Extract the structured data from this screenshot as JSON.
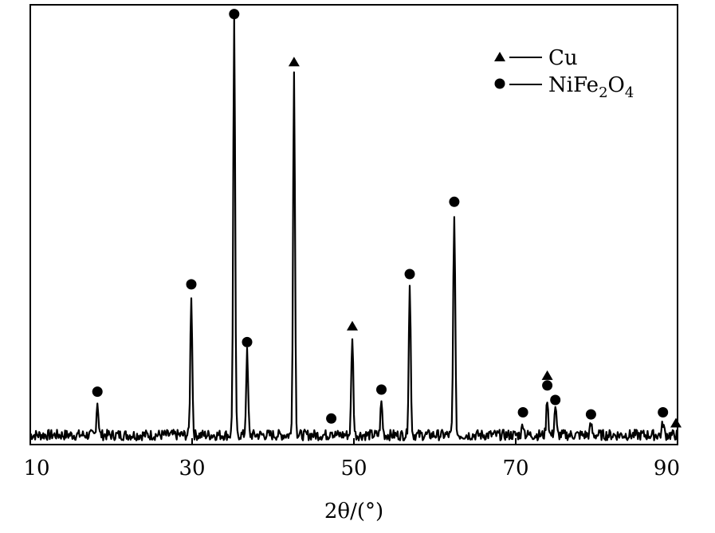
{
  "chart_data": {
    "type": "line",
    "title": "",
    "xlabel": "2θ/(°)",
    "ylabel": "",
    "xlim": [
      10,
      90
    ],
    "ylim": [
      0,
      100
    ],
    "x_ticks": [
      "10",
      "30",
      "50",
      "70",
      "90"
    ],
    "grid": false,
    "legend_position": "top-right",
    "legend": [
      {
        "marker": "triangle",
        "label": "Cu",
        "label_main": "Cu",
        "label_parts": []
      },
      {
        "marker": "circle",
        "label": "NiFe2O4",
        "label_parts": [
          {
            "text": "NiFe",
            "sub": false
          },
          {
            "text": "2",
            "sub": true
          },
          {
            "text": "O",
            "sub": false
          },
          {
            "text": "4",
            "sub": true
          }
        ]
      }
    ],
    "series": [
      {
        "peaks": [
          {
            "x": 18.3,
            "y": 8,
            "phase": "NiFe2O4"
          },
          {
            "x": 29.9,
            "y": 34,
            "phase": "NiFe2O4"
          },
          {
            "x": 35.2,
            "y": 100,
            "phase": "NiFe2O4"
          },
          {
            "x": 36.8,
            "y": 20,
            "phase": "NiFe2O4"
          },
          {
            "x": 42.6,
            "y": 88,
            "phase": "Cu"
          },
          {
            "x": 47.2,
            "y": 1.5,
            "phase": "NiFe2O4"
          },
          {
            "x": 49.8,
            "y": 24,
            "phase": "Cu"
          },
          {
            "x": 53.4,
            "y": 8,
            "phase": "NiFe2O4"
          },
          {
            "x": 56.9,
            "y": 36,
            "phase": "NiFe2O4"
          },
          {
            "x": 62.4,
            "y": 54,
            "phase": "NiFe2O4"
          },
          {
            "x": 70.9,
            "y": 3,
            "phase": "NiFe2O4"
          },
          {
            "x": 73.9,
            "y": 9,
            "phase": "Cu"
          },
          {
            "x": 74.9,
            "y": 7,
            "phase": "NiFe2O4"
          },
          {
            "x": 79.3,
            "y": 2.5,
            "phase": "NiFe2O4"
          },
          {
            "x": 88.2,
            "y": 3,
            "phase": "NiFe2O4"
          }
        ]
      }
    ],
    "markers": [
      {
        "x": 18.3,
        "y": 10.5,
        "type": "circle"
      },
      {
        "x": 29.9,
        "y": 36.5,
        "type": "circle"
      },
      {
        "x": 35.2,
        "y": 102,
        "type": "circle"
      },
      {
        "x": 36.8,
        "y": 22.5,
        "type": "circle"
      },
      {
        "x": 42.6,
        "y": 90.5,
        "type": "triangle"
      },
      {
        "x": 47.2,
        "y": 4,
        "type": "circle"
      },
      {
        "x": 49.8,
        "y": 26.5,
        "type": "triangle"
      },
      {
        "x": 53.4,
        "y": 11,
        "type": "circle"
      },
      {
        "x": 56.9,
        "y": 39,
        "type": "circle"
      },
      {
        "x": 62.4,
        "y": 56.5,
        "type": "circle"
      },
      {
        "x": 70.9,
        "y": 5.5,
        "type": "circle"
      },
      {
        "x": 73.9,
        "y": 14.5,
        "type": "triangle"
      },
      {
        "x": 73.9,
        "y": 12,
        "type": "circle"
      },
      {
        "x": 74.9,
        "y": 8.5,
        "type": "circle"
      },
      {
        "x": 79.3,
        "y": 5,
        "type": "circle"
      },
      {
        "x": 88.2,
        "y": 5.5,
        "type": "circle"
      },
      {
        "x": 89.8,
        "y": 3,
        "type": "triangle"
      }
    ]
  }
}
